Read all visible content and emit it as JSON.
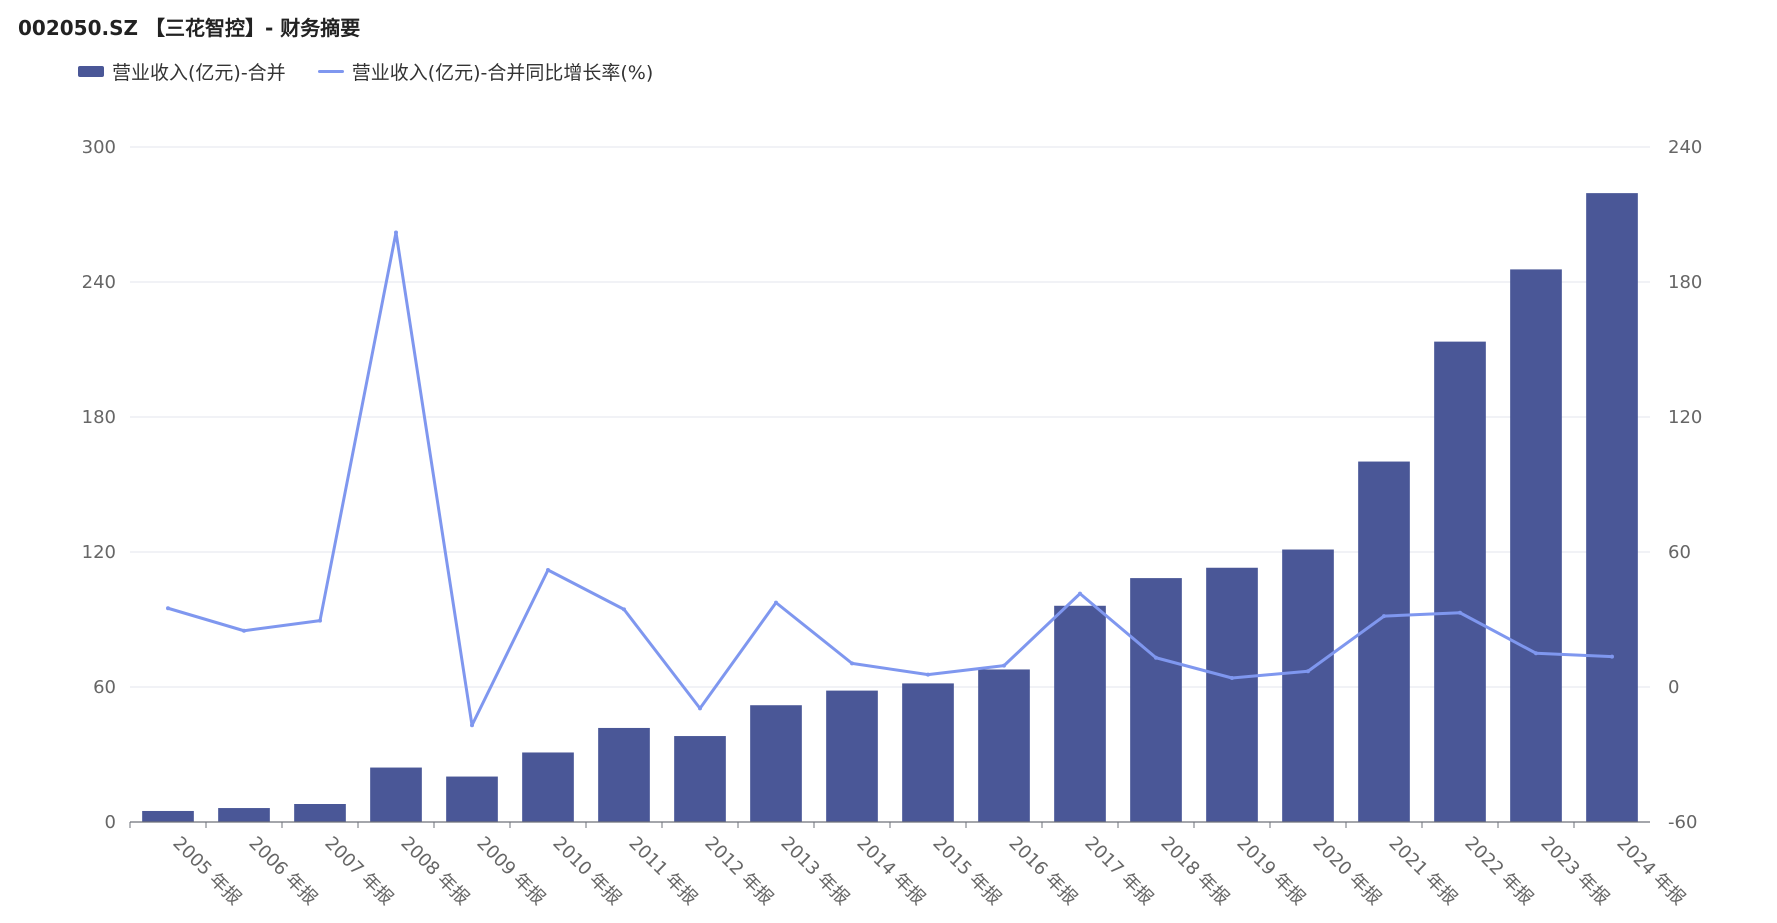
{
  "title": "002050.SZ 【三花智控】- 财务摘要",
  "legend": {
    "bar_label": "营业收入(亿元)-合并",
    "line_label": "营业收入(亿元)-合并同比增长率(%)"
  },
  "colors": {
    "bar": "#4a5797",
    "line": "#7f97ef",
    "grid": "#e3e6ee",
    "axis": "#6e7079"
  },
  "chart_data": {
    "type": "bar",
    "title": "002050.SZ 【三花智控】- 财务摘要",
    "categories": [
      "2005 年报",
      "2006 年报",
      "2007 年报",
      "2008 年报",
      "2009 年报",
      "2010 年报",
      "2011 年报",
      "2012 年报",
      "2013 年报",
      "2014 年报",
      "2015 年报",
      "2016 年报",
      "2017 年报",
      "2018 年报",
      "2019 年报",
      "2020 年报",
      "2021 年报",
      "2022 年报",
      "2023 年报",
      "2024 年报"
    ],
    "series": [
      {
        "name": "营业收入(亿元)-合并",
        "type": "bar",
        "axis": "left",
        "values": [
          4.9,
          6.2,
          8.0,
          24.2,
          20.2,
          30.9,
          41.8,
          38.2,
          51.9,
          58.4,
          61.6,
          67.8,
          96.1,
          108.4,
          113.0,
          121.1,
          160.2,
          213.5,
          245.6,
          279.5
        ]
      },
      {
        "name": "营业收入(亿元)-合并同比增长率(%)",
        "type": "line",
        "axis": "right",
        "values": [
          35.0,
          25.0,
          29.5,
          202.0,
          -17.0,
          52.0,
          34.5,
          -9.5,
          37.5,
          10.5,
          5.5,
          9.5,
          41.5,
          13.0,
          4.0,
          7.0,
          31.5,
          33.0,
          15.0,
          13.5
        ]
      }
    ],
    "ylim_left": [
      0,
      300
    ],
    "yticks_left": [
      0,
      60,
      120,
      180,
      240,
      300
    ],
    "ylim_right": [
      -60,
      240
    ],
    "yticks_right": [
      -60,
      0,
      60,
      120,
      180,
      240
    ],
    "grid": true,
    "legend_position": "top-left"
  }
}
